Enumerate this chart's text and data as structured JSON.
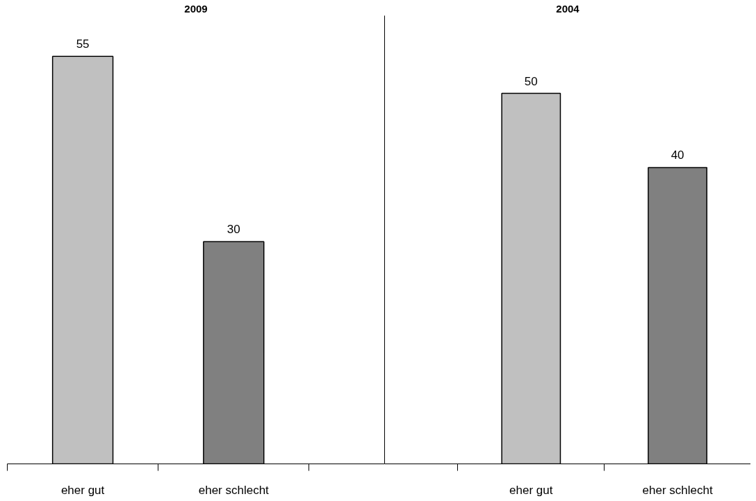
{
  "chart_data": [
    {
      "type": "bar",
      "title": "2009",
      "categories": [
        "eher gut",
        "eher schlecht"
      ],
      "values": [
        55,
        30
      ],
      "colors": [
        "#c0c0c0",
        "#808080"
      ],
      "data_labels": true,
      "tick_labels": "x",
      "grid": false
    },
    {
      "type": "bar",
      "title": "2004",
      "categories": [
        "eher gut",
        "eher schlecht"
      ],
      "values": [
        50,
        40
      ],
      "colors": [
        "#c0c0c0",
        "#808080"
      ],
      "data_labels": true,
      "tick_labels": "x",
      "grid": false
    }
  ]
}
